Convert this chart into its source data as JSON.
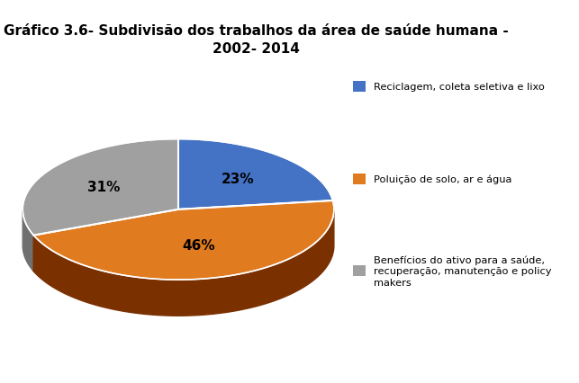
{
  "title": "Gráfico 3.6- Subdivisão dos trabalhos da área de saúde humana -\n2002- 2014",
  "slices": [
    23,
    46,
    31
  ],
  "labels": [
    "23%",
    "46%",
    "31%"
  ],
  "colors": [
    "#4472C4",
    "#E07B20",
    "#A0A0A0"
  ],
  "shadow_colors": [
    "#2a4a8a",
    "#7B3000",
    "#707070"
  ],
  "legend_labels": [
    "Reciclagem, coleta seletiva e lixo",
    "Poluição de solo, ar e água",
    "Benefícios do ativo para a saúde,\nrecuperação, manutenção e policy\nmakers"
  ],
  "legend_colors": [
    "#4472C4",
    "#E07B20",
    "#A0A0A0"
  ],
  "title_fontsize": 11,
  "label_fontsize": 11
}
